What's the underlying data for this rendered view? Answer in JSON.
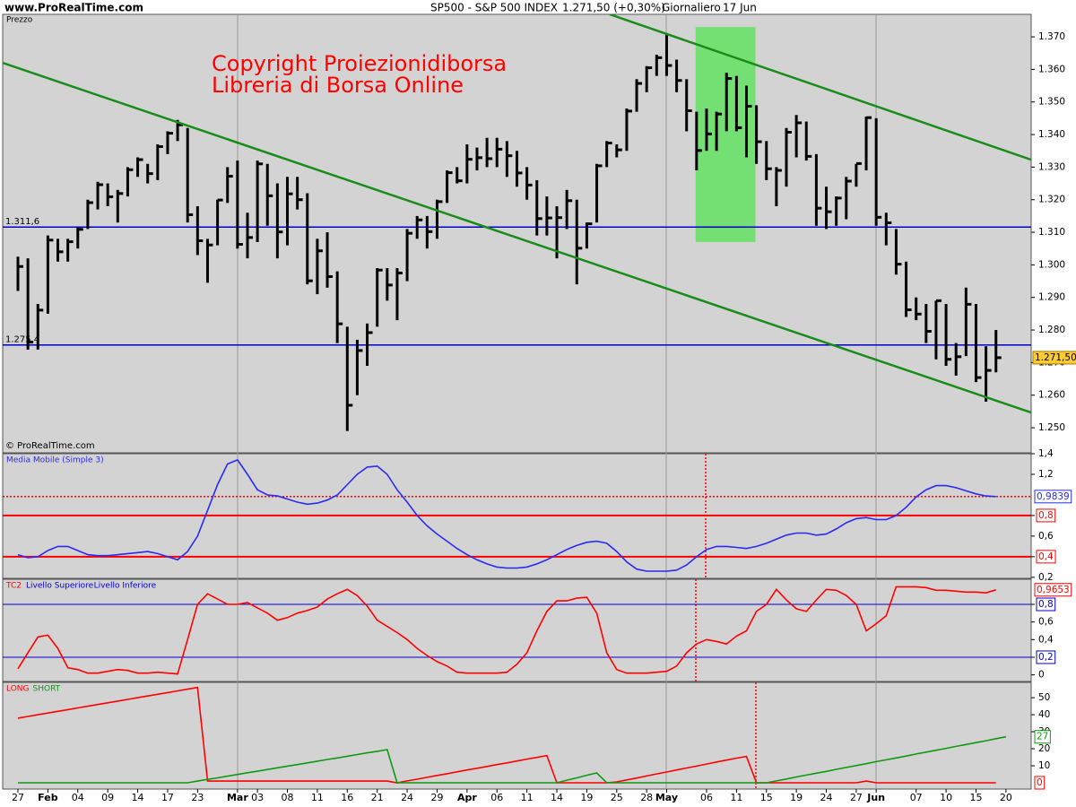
{
  "header": {
    "site": "www.ProRealTime.com",
    "title": "SP500 - S&P 500 INDEX",
    "quote": "1.271,50 (+0,30%)",
    "period": "Giornaliero",
    "date": "17 Jun"
  },
  "chart_data": [
    {
      "type": "ohlc",
      "panel_label": "Prezzo",
      "watermark": "© ProRealTime.com",
      "annotations": [
        "Copyright Proiezionidiborsa",
        "Libreria di Borsa Online"
      ],
      "categories": [
        "27",
        null,
        null,
        "Feb",
        null,
        null,
        "04",
        null,
        null,
        "09",
        null,
        null,
        "14",
        null,
        null,
        "17",
        null,
        null,
        "23",
        null,
        null,
        null,
        "Mar",
        null,
        "03",
        null,
        null,
        "08",
        null,
        null,
        "11",
        null,
        null,
        "16",
        null,
        null,
        "21",
        null,
        null,
        "24",
        null,
        null,
        "29",
        null,
        null,
        "Apr",
        null,
        null,
        "06",
        null,
        null,
        "11",
        null,
        null,
        "14",
        null,
        null,
        "19",
        null,
        null,
        "25",
        null,
        null,
        "28",
        null,
        "May",
        null,
        null,
        null,
        "06",
        null,
        null,
        "11",
        null,
        null,
        "15",
        null,
        null,
        "19",
        null,
        null,
        "24",
        null,
        null,
        "27",
        null,
        "Jun",
        null,
        null,
        null,
        "07",
        null,
        null,
        "10",
        null,
        null,
        "15",
        null,
        null,
        "20"
      ],
      "high": [
        1302.5,
        1302,
        1288,
        1309,
        1308,
        1308,
        1311.5,
        1320,
        1325.5,
        1325,
        1323,
        1330,
        1333,
        1331,
        1337,
        1341,
        1344.5,
        1342,
        1318,
        1308,
        1320,
        1330,
        1332,
        1316,
        1332,
        1331,
        1325,
        1327,
        1327,
        1322,
        1308,
        1310,
        1298,
        1281,
        1277,
        1282,
        1299,
        1299,
        1299,
        1311,
        1315,
        1315,
        1320,
        1329,
        1330,
        1337,
        1336,
        1339,
        1339,
        1338,
        1335,
        1330,
        1326,
        1321,
        1318,
        1323,
        1320,
        1313,
        1331,
        1338,
        1337,
        1348,
        1357,
        1361,
        1364.5,
        1370.6,
        1363,
        1357,
        1347,
        1348,
        1347,
        1359,
        1358,
        1355,
        1349,
        1338,
        1330,
        1342,
        1346,
        1344,
        1334,
        1324,
        1321,
        1327,
        1331,
        1345.5,
        1345,
        1316,
        1311,
        1301,
        1290,
        1288,
        1289,
        1288,
        1276,
        1293,
        1288,
        1275,
        1280,
        null
      ],
      "low": [
        1292,
        1274,
        1274,
        1285,
        1301,
        1301,
        1305,
        1311,
        1317,
        1318,
        1313,
        1321,
        1327,
        1325,
        1326,
        1334,
        1338,
        1313,
        1303,
        1294.5,
        1306,
        1319,
        1305,
        1302,
        1307,
        1312,
        1302,
        1306,
        1317,
        1294,
        1291,
        1293,
        1276,
        1249,
        1260,
        1269,
        1281,
        1289,
        1283,
        1295,
        1308,
        1305,
        1308,
        1319,
        1325,
        1325,
        1329,
        1330,
        1330,
        1327,
        1324,
        1320,
        1309,
        1309,
        1302,
        1311,
        1294,
        1305,
        1313,
        1330,
        1333,
        1335,
        1347,
        1353,
        1358,
        1358,
        1353,
        1341,
        1329,
        1335,
        1335,
        1341,
        1341,
        1333,
        1331,
        1326,
        1318,
        1324,
        1333,
        1332,
        1312,
        1311,
        1312,
        1314,
        1324,
        1329,
        1312,
        1306,
        1297,
        1284,
        1283,
        1276,
        1271,
        1269,
        1266,
        1272,
        1264,
        1258,
        1267,
        null
      ],
      "close": [
        1299.5,
        1276.3,
        1286.1,
        1307.6,
        1304.0,
        1307.1,
        1310.9,
        1319.1,
        1324.6,
        1320.9,
        1321.9,
        1329.2,
        1332.3,
        1328.0,
        1336.3,
        1340.4,
        1343.0,
        1315.4,
        1307.4,
        1306.1,
        1319.9,
        1327.2,
        1306.3,
        1308.4,
        1331.0,
        1321.2,
        1310.1,
        1321.8,
        1320.0,
        1295.1,
        1304.3,
        1296.4,
        1281.9,
        1256.9,
        1273.7,
        1279.2,
        1298.4,
        1293.8,
        1297.5,
        1309.7,
        1313.8,
        1310.2,
        1319.4,
        1328.3,
        1325.8,
        1332.4,
        1332.9,
        1332.6,
        1335.5,
        1333.5,
        1328.2,
        1324.5,
        1314.2,
        1314.4,
        1314.5,
        1319.7,
        1305.1,
        1312.6,
        1330.4,
        1337.4,
        1335.3,
        1347.2,
        1355.7,
        1360.5,
        1363.6,
        1361.2,
        1356.6,
        1347.3,
        1335.1,
        1340.2,
        1346.3,
        1357.2,
        1342.1,
        1348.7,
        1337.8,
        1329.5,
        1329.0,
        1340.7,
        1343.6,
        1333.3,
        1317.4,
        1316.3,
        1320.5,
        1325.7,
        1331.1,
        1345.2,
        1314.6,
        1312.9,
        1300.2,
        1286.2,
        1284.9,
        1279.6,
        1289.0,
        1271.0,
        1271.8,
        1287.9,
        1265.4,
        1267.6,
        1271.5,
        null
      ],
      "last_label": "1.271,50",
      "color": "#000000",
      "ylim": [
        1242.3,
        1376.9
      ],
      "yticks": [
        {
          "value": 1250,
          "label": "1.250"
        },
        {
          "value": 1260,
          "label": "1.260"
        },
        {
          "value": 1270,
          "label": "1.270"
        },
        {
          "value": 1280,
          "label": "1.280"
        },
        {
          "value": 1290,
          "label": "1.290"
        },
        {
          "value": 1300,
          "label": "1.300"
        },
        {
          "value": 1310,
          "label": "1.310"
        },
        {
          "value": 1320,
          "label": "1.320"
        },
        {
          "value": 1330,
          "label": "1.330"
        },
        {
          "value": 1340,
          "label": "1.340"
        },
        {
          "value": 1350,
          "label": "1.350"
        },
        {
          "value": 1360,
          "label": "1.360"
        },
        {
          "value": 1370,
          "label": "1.370"
        }
      ],
      "hlines": [
        {
          "value": 1311.6,
          "label": "1.311,6"
        },
        {
          "value": 1275.4,
          "label": "1.275,4"
        }
      ],
      "hline_color": "#0000cc",
      "trendlines": [
        {
          "x": [
            -1.5,
            101.5
          ],
          "y": [
            1362,
            1254.7
          ]
        },
        {
          "x": [
            59.3,
            101.5
          ],
          "y": [
            1376.9,
            1332.3
          ]
        }
      ],
      "trend_color": "#1a8c1a",
      "highlight": {
        "x": [
          67.9,
          73.9
        ],
        "y": [
          1307,
          1373
        ],
        "color": "#74e074"
      }
    },
    {
      "type": "line",
      "ylim": [
        0.19,
        1.4
      ],
      "yticks": [
        {
          "value": 0.2,
          "label": "0,2"
        },
        {
          "value": 0.4,
          "label": "0,4"
        },
        {
          "value": 0.6,
          "label": "0,6"
        },
        {
          "value": 0.8,
          "label": "0,8"
        },
        {
          "value": 1.2,
          "label": "1,2"
        },
        {
          "value": 1.4,
          "label": "1,4"
        }
      ],
      "levels": [
        0.8,
        0.4
      ],
      "level_color": "#ff0000",
      "last_line_color": "#ff0000",
      "series": [
        {
          "name": "Media Mobile (Simple 3)",
          "color": "#2a2af0",
          "last_label": "0,9839",
          "values": [
            0.42,
            0.39,
            0.4,
            0.46,
            0.5,
            0.5,
            0.46,
            0.42,
            0.41,
            0.41,
            0.42,
            0.43,
            0.44,
            0.45,
            0.43,
            0.4,
            0.37,
            0.45,
            0.6,
            0.85,
            1.1,
            1.3,
            1.34,
            1.2,
            1.05,
            1.0,
            0.99,
            0.96,
            0.93,
            0.91,
            0.92,
            0.95,
            1.0,
            1.1,
            1.2,
            1.27,
            1.28,
            1.2,
            1.05,
            0.93,
            0.8,
            0.7,
            0.62,
            0.55,
            0.48,
            0.42,
            0.37,
            0.33,
            0.3,
            0.29,
            0.29,
            0.3,
            0.33,
            0.37,
            0.42,
            0.47,
            0.51,
            0.54,
            0.55,
            0.53,
            0.45,
            0.35,
            0.28,
            0.26,
            0.26,
            0.26,
            0.27,
            0.32,
            0.4,
            0.47,
            0.5,
            0.5,
            0.49,
            0.48,
            0.5,
            0.53,
            0.57,
            0.61,
            0.63,
            0.63,
            0.61,
            0.62,
            0.67,
            0.73,
            0.77,
            0.78,
            0.76,
            0.76,
            0.8,
            0.88,
            0.98,
            1.05,
            1.09,
            1.09,
            1.07,
            1.04,
            1.01,
            0.99,
            0.9839,
            null
          ]
        }
      ]
    },
    {
      "type": "line",
      "ylim": [
        -0.075,
        1.085
      ],
      "yticks": [
        0,
        {
          "value": 0.2,
          "label": "0,2"
        },
        {
          "value": 0.4,
          "label": "0,4"
        },
        {
          "value": 0.6,
          "label": "0,6"
        },
        {
          "value": 0.8,
          "label": "0,8"
        }
      ],
      "levels": [
        0.8,
        0.2
      ],
      "level_names": [
        "Livello Superiore",
        "Livello Inferiore"
      ],
      "level_color": "#0000cc",
      "series": [
        {
          "name": "TC2",
          "color": "#ff0000",
          "last_label": "0,9653",
          "values": [
            0.07,
            0.25,
            0.43,
            0.45,
            0.3,
            0.08,
            0.06,
            0.02,
            0.02,
            0.04,
            0.06,
            0.05,
            0.02,
            0.02,
            0.03,
            0.02,
            0.01,
            0.4,
            0.8,
            0.92,
            0.86,
            0.8,
            0.8,
            0.82,
            0.76,
            0.7,
            0.62,
            0.65,
            0.7,
            0.73,
            0.77,
            0.86,
            0.92,
            0.97,
            0.9,
            0.78,
            0.62,
            0.55,
            0.48,
            0.4,
            0.3,
            0.22,
            0.15,
            0.1,
            0.03,
            0.02,
            0.02,
            0.02,
            0.02,
            0.03,
            0.12,
            0.25,
            0.5,
            0.72,
            0.84,
            0.84,
            0.87,
            0.88,
            0.7,
            0.25,
            0.06,
            0.02,
            0.02,
            0.02,
            0.03,
            0.04,
            0.1,
            0.25,
            0.35,
            0.4,
            0.38,
            0.35,
            0.44,
            0.5,
            0.72,
            0.8,
            0.97,
            0.85,
            0.75,
            0.72,
            0.85,
            0.97,
            0.96,
            0.9,
            0.8,
            0.5,
            0.58,
            0.67,
            1.0,
            1.0,
            1.0,
            0.99,
            0.96,
            0.96,
            0.95,
            0.94,
            0.94,
            0.93,
            0.9653,
            null
          ]
        }
      ]
    },
    {
      "type": "line",
      "ylim": [
        -3.7,
        59
      ],
      "yticks": [
        10,
        20,
        30,
        40,
        50
      ],
      "series": [
        {
          "name": "LONG",
          "color": "#ff0000",
          "values": [
            38,
            39,
            40,
            41,
            42,
            43,
            44,
            45,
            46,
            47,
            48,
            49,
            50,
            51,
            52,
            53,
            54,
            55,
            56,
            1,
            1,
            1,
            1,
            1,
            1,
            1,
            1,
            1,
            1,
            1,
            1,
            1,
            1,
            1,
            1,
            1,
            1,
            1,
            0,
            1.1,
            2.1,
            3.2,
            4.3,
            5.3,
            6.4,
            7.5,
            8.5,
            9.6,
            10.7,
            11.7,
            12.8,
            13.9,
            14.9,
            16,
            0,
            0,
            0,
            0,
            0,
            0,
            0.5,
            1.7,
            2.8,
            4,
            5.2,
            6.3,
            7.5,
            8.7,
            9.8,
            11,
            12.2,
            13.3,
            14.5,
            15.5,
            0,
            0,
            0,
            0,
            0,
            0,
            0,
            0,
            0,
            0,
            0,
            1,
            0,
            0,
            0,
            0,
            0,
            0,
            0,
            0,
            0,
            0,
            0,
            0,
            0,
            null
          ]
        },
        {
          "name": "SHORT",
          "color": "#119911",
          "values": [
            0,
            0,
            0,
            0,
            0,
            0,
            0,
            0,
            0,
            0,
            0,
            0,
            0,
            0,
            0,
            0,
            0,
            0,
            1,
            2,
            2.9,
            3.9,
            4.9,
            5.9,
            6.8,
            7.8,
            8.8,
            9.8,
            10.7,
            11.7,
            12.7,
            13.7,
            14.6,
            15.6,
            16.6,
            17.6,
            18.5,
            19.5,
            0,
            0,
            0,
            0,
            0,
            0,
            0,
            0,
            0,
            0,
            0,
            0,
            0,
            0,
            0,
            0,
            0,
            1.5,
            2.9,
            4.4,
            5.8,
            0,
            0,
            0,
            0,
            0,
            0,
            0,
            0,
            0,
            0,
            0,
            0,
            0,
            0,
            0,
            0,
            0,
            1.1,
            2.2,
            3.4,
            4.5,
            5.6,
            6.7,
            7.9,
            9,
            10.1,
            11.2,
            12.4,
            13.5,
            14.6,
            15.7,
            16.9,
            18,
            19.1,
            20.2,
            21.4,
            22.5,
            23.6,
            24.7,
            25.9,
            27,
            null
          ]
        }
      ]
    }
  ]
}
